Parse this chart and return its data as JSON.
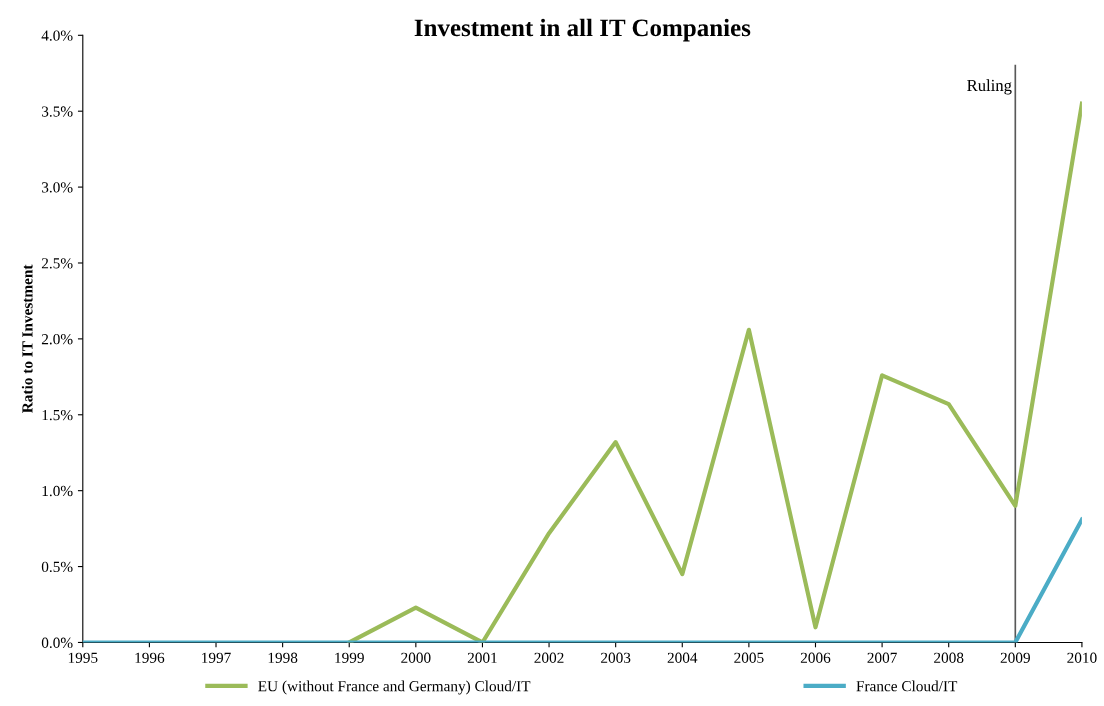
{
  "chart_data": {
    "type": "line",
    "title": "Investment in all IT Companies",
    "ylabel": "Ratio to IT Investment",
    "x": [
      1995,
      1996,
      1997,
      1998,
      1999,
      2000,
      2001,
      2002,
      2003,
      2004,
      2005,
      2006,
      2007,
      2008,
      2009,
      2010
    ],
    "series": [
      {
        "name": "EU (without France and Germany) Cloud/IT",
        "color": "#9bbb59",
        "values": [
          null,
          null,
          null,
          null,
          0,
          0.23,
          0.0,
          0.72,
          1.32,
          0.45,
          2.06,
          0.1,
          1.76,
          1.57,
          0.9,
          3.55
        ]
      },
      {
        "name": "France Cloud/IT",
        "color": "#4bacc6",
        "values": [
          0,
          0,
          0,
          0,
          0,
          0,
          0,
          0,
          0,
          0,
          0,
          0,
          0,
          0,
          0,
          0.81
        ]
      }
    ],
    "xlim": [
      1995,
      2010
    ],
    "xticks": [
      1995,
      1996,
      1997,
      1998,
      1999,
      2000,
      2001,
      2002,
      2003,
      2004,
      2005,
      2006,
      2007,
      2008,
      2009,
      2010
    ],
    "ylim": [
      0,
      4
    ],
    "yticks": [
      {
        "value": 0,
        "label": "0.0%"
      },
      {
        "value": 0.5,
        "label": "0.5%"
      },
      {
        "value": 1,
        "label": "1.0%"
      },
      {
        "value": 1.5,
        "label": "1.5%"
      },
      {
        "value": 2,
        "label": "2.0%"
      },
      {
        "value": 2.5,
        "label": "2.5%"
      },
      {
        "value": 3,
        "label": "3.0%"
      },
      {
        "value": 3.5,
        "label": "3.5%"
      },
      {
        "value": 4,
        "label": "4.0%"
      }
    ],
    "ref_lines": [
      {
        "axis": "x",
        "value": 2009,
        "label": "Ruling",
        "color": "#595959"
      }
    ],
    "legend": "bottom",
    "grid": false,
    "marker": "none",
    "line_style": "solid"
  }
}
